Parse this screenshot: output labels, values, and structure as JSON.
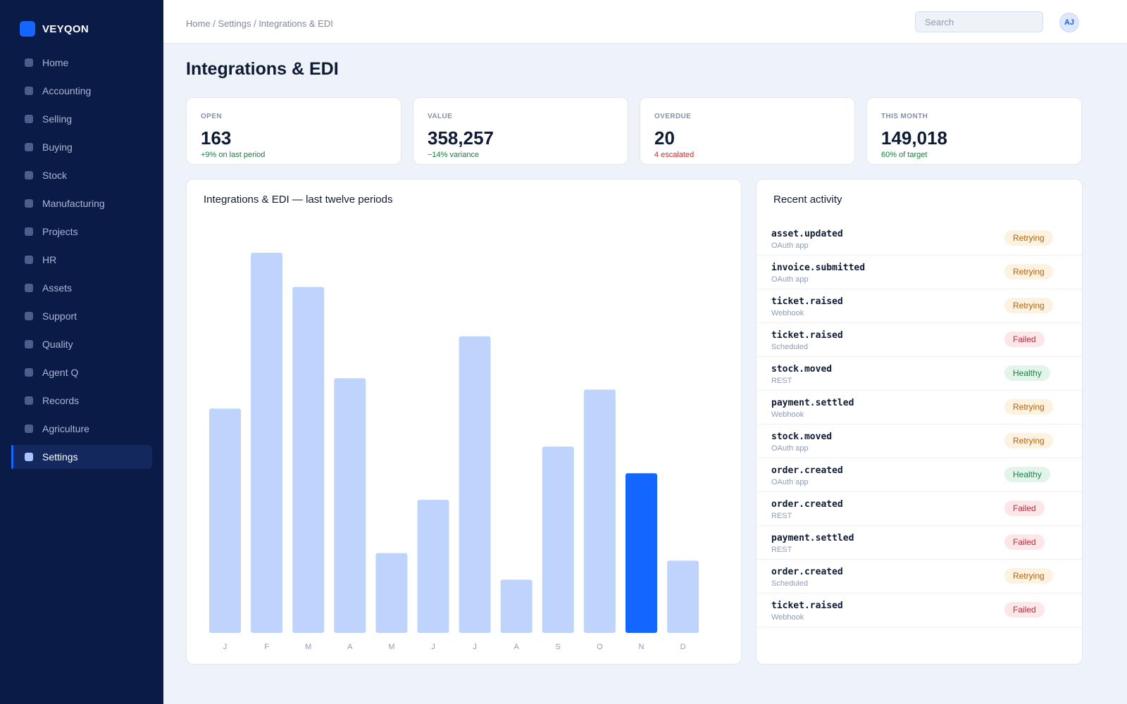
{
  "app": {
    "name": "VEYQON"
  },
  "sidebar": {
    "items": [
      {
        "label": "Home",
        "active": false
      },
      {
        "label": "Accounting",
        "active": false
      },
      {
        "label": "Selling",
        "active": false
      },
      {
        "label": "Buying",
        "active": false
      },
      {
        "label": "Stock",
        "active": false
      },
      {
        "label": "Manufacturing",
        "active": false
      },
      {
        "label": "Projects",
        "active": false
      },
      {
        "label": "HR",
        "active": false
      },
      {
        "label": "Assets",
        "active": false
      },
      {
        "label": "Support",
        "active": false
      },
      {
        "label": "Quality",
        "active": false
      },
      {
        "label": "Agent Q",
        "active": false
      },
      {
        "label": "Records",
        "active": false
      },
      {
        "label": "Agriculture",
        "active": false
      },
      {
        "label": "Settings",
        "active": true
      }
    ]
  },
  "header": {
    "breadcrumb": "Home / Settings / Integrations & EDI",
    "search_placeholder": "Search",
    "avatar_initials": "AJ"
  },
  "page": {
    "title": "Integrations & EDI"
  },
  "kpis": [
    {
      "label": "OPEN",
      "value": "163",
      "delta": "+9% on last period",
      "tone": "green"
    },
    {
      "label": "VALUE",
      "value": "358,257",
      "delta": "−14% variance",
      "tone": "green"
    },
    {
      "label": "OVERDUE",
      "value": "20",
      "delta": "4 escalated",
      "tone": "red"
    },
    {
      "label": "THIS MONTH",
      "value": "149,018",
      "delta": "60% of target",
      "tone": "green"
    }
  ],
  "chart_data": {
    "type": "bar",
    "title": "Integrations & EDI — last twelve periods",
    "categories": [
      "J",
      "F",
      "M",
      "A",
      "M",
      "J",
      "J",
      "A",
      "S",
      "O",
      "N",
      "D"
    ],
    "values": [
      59,
      100,
      91,
      67,
      21,
      35,
      78,
      14,
      49,
      64,
      42,
      19
    ],
    "highlight_index": 10,
    "colors": {
      "bar": "#bfd4fd",
      "highlight": "#1366ff"
    },
    "ylim": [
      0,
      100
    ],
    "grid": false,
    "legend": "none"
  },
  "activity": {
    "title": "Recent activity",
    "items": [
      {
        "event": "asset.updated",
        "source": "OAuth app",
        "status": "Retrying"
      },
      {
        "event": "invoice.submitted",
        "source": "OAuth app",
        "status": "Retrying"
      },
      {
        "event": "ticket.raised",
        "source": "Webhook",
        "status": "Retrying"
      },
      {
        "event": "ticket.raised",
        "source": "Scheduled",
        "status": "Failed"
      },
      {
        "event": "stock.moved",
        "source": "REST",
        "status": "Healthy"
      },
      {
        "event": "payment.settled",
        "source": "Webhook",
        "status": "Retrying"
      },
      {
        "event": "stock.moved",
        "source": "OAuth app",
        "status": "Retrying"
      },
      {
        "event": "order.created",
        "source": "OAuth app",
        "status": "Healthy"
      },
      {
        "event": "order.created",
        "source": "REST",
        "status": "Failed"
      },
      {
        "event": "payment.settled",
        "source": "REST",
        "status": "Failed"
      },
      {
        "event": "order.created",
        "source": "Scheduled",
        "status": "Retrying"
      },
      {
        "event": "ticket.raised",
        "source": "Webhook",
        "status": "Failed"
      }
    ]
  }
}
